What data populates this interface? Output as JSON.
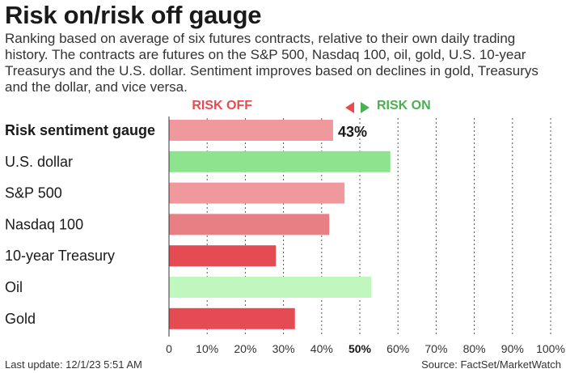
{
  "title": "Risk on/risk off gauge",
  "subtitle": "Ranking based on average of six futures contracts, relative to their own daily trading history. The contracts are futures on the S&P 500, Nasdaq 100, oil, gold, U.S. 10-year Treasurys and the U.S. dollar. Sentiment improves based on declines in gold, Treasurys and the dollar, and vice versa.",
  "legend": {
    "risk_off": "RISK OFF",
    "risk_on": "RISK ON",
    "risk_off_color": "#e84a4f",
    "risk_on_color": "#4caf50"
  },
  "footer": {
    "last_update": "Last update: 12/1/23 5:51 AM",
    "source": "Source: FactSet/MarketWatch"
  },
  "chart_data": {
    "type": "bar",
    "orientation": "horizontal",
    "categories": [
      "Risk sentiment gauge",
      "U.S. dollar",
      "S&P 500",
      "Nasdaq 100",
      "10-year Treasury",
      "Oil",
      "Gold"
    ],
    "values": [
      43,
      58,
      46,
      42,
      28,
      53,
      33
    ],
    "colors": [
      "#f0999c",
      "#8ee38e",
      "#f0999c",
      "#e87f84",
      "#e54b53",
      "#bff7bf",
      "#e54b53"
    ],
    "data_labels": [
      "43%",
      "",
      "",
      "",
      "",
      "",
      ""
    ],
    "xlim": [
      0,
      100
    ],
    "x_ticks": [
      0,
      10,
      20,
      30,
      40,
      50,
      60,
      70,
      80,
      90,
      100
    ],
    "x_tick_labels": [
      "0",
      "10%",
      "20%",
      "30%",
      "40%",
      "50%",
      "60%",
      "70%",
      "80%",
      "90%",
      "100%"
    ],
    "highlight_tick": 50,
    "grid": "dotted vertical"
  }
}
